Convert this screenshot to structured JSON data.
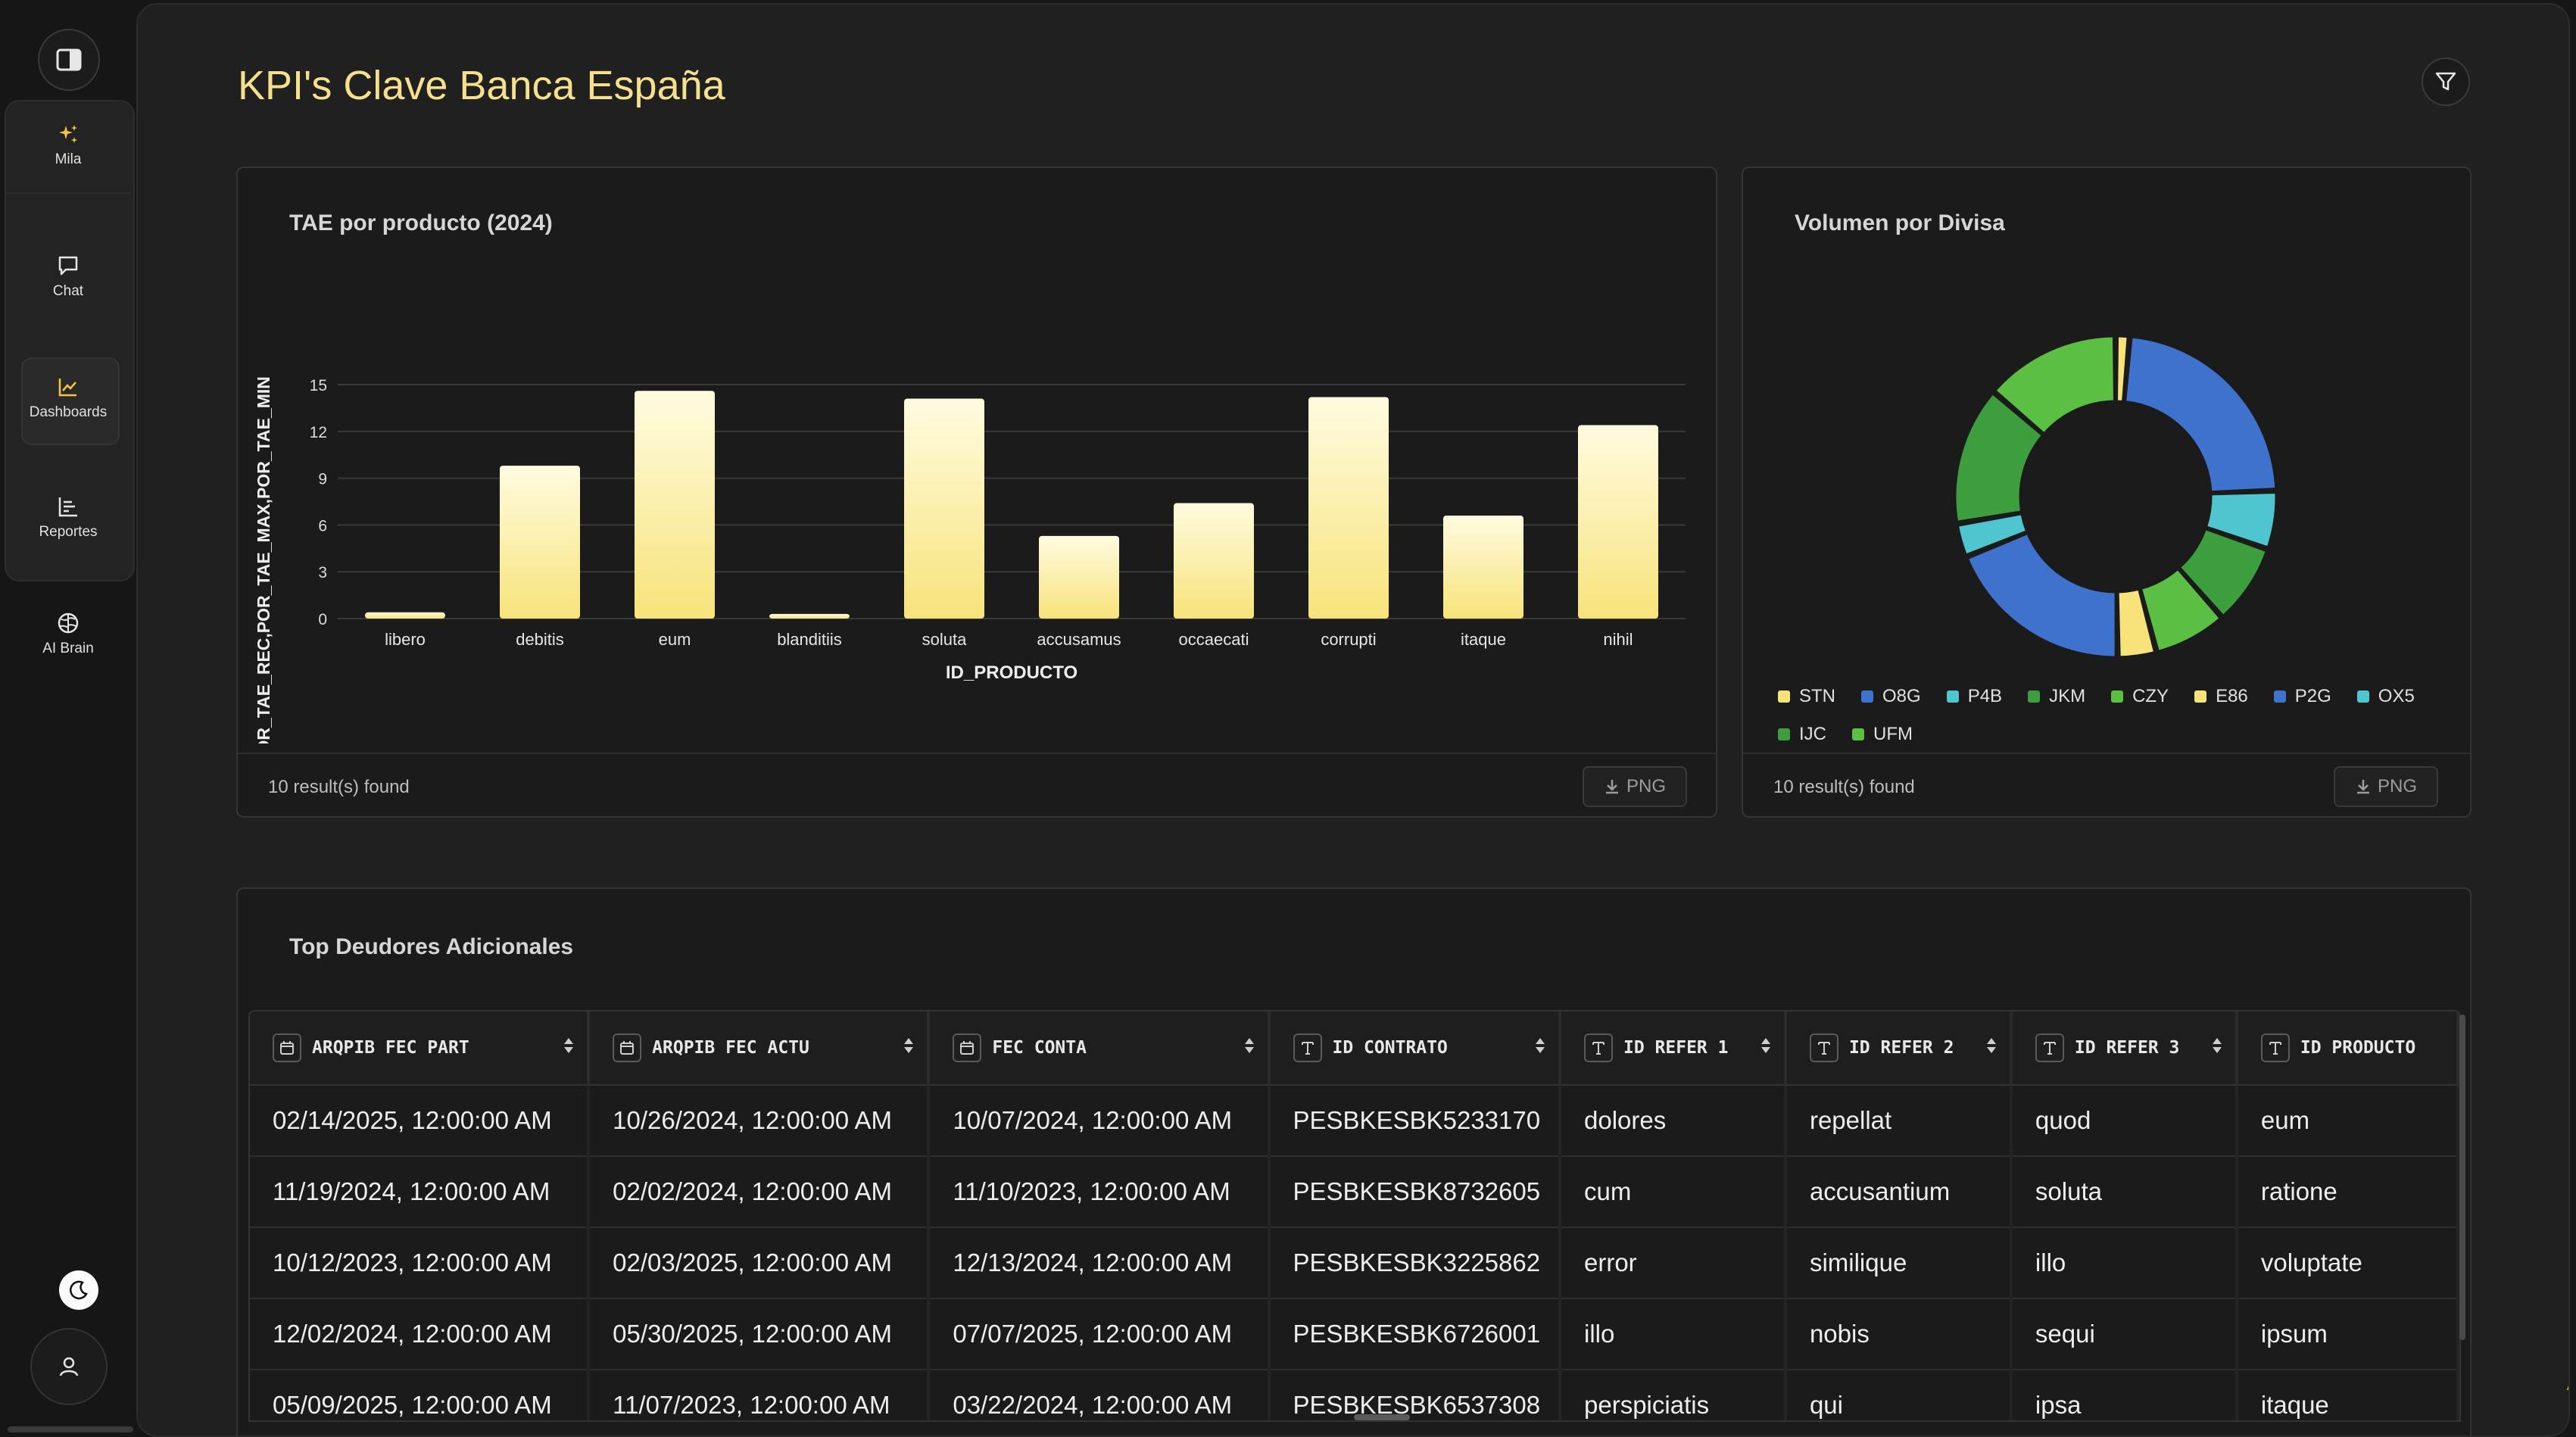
{
  "sidebar": {
    "items": [
      {
        "label": "Mila",
        "icon": "sparkles-icon"
      },
      {
        "label": "Chat",
        "icon": "chat-bubble-icon"
      },
      {
        "label": "Dashboards",
        "icon": "line-chart-icon"
      },
      {
        "label": "Reportes",
        "icon": "bar-list-icon"
      },
      {
        "label": "AI Brain",
        "icon": "brain-icon"
      }
    ],
    "active": "Dashboards",
    "accent": "#f5c542"
  },
  "page": {
    "title": "KPI's Clave Banca España"
  },
  "tae_card": {
    "title": "TAE por producto (2024)",
    "results": "10 result(s) found",
    "png_label": "PNG"
  },
  "volume_card": {
    "title": "Volumen por Divisa",
    "results": "10 result(s) found",
    "png_label": "PNG"
  },
  "table_card": {
    "title": "Top Deudores Adicionales"
  },
  "chart_data": [
    {
      "type": "bar",
      "title": "TAE por producto (2024)",
      "xlabel": "ID_PRODUCTO",
      "ylabel": "POR_TAE_REC,POR_TAE_MAX,POR_TAE_MIN",
      "categories": [
        "libero",
        "debitis",
        "eum",
        "blanditiis",
        "soluta",
        "accusamus",
        "occaecati",
        "corrupti",
        "itaque",
        "nihil"
      ],
      "values": [
        0.4,
        9.8,
        14.6,
        0.3,
        14.1,
        5.3,
        7.4,
        14.2,
        6.6,
        12.4
      ],
      "yticks": [
        0,
        3,
        6,
        9,
        12,
        15
      ],
      "ylim": [
        0,
        15
      ],
      "grid": true,
      "color": "#f7e37a"
    },
    {
      "type": "pie",
      "title": "Volumen por Divisa",
      "donut": true,
      "legend_position": "bottom",
      "slices": [
        {
          "label": "STN",
          "value": 1.4,
          "color": "#f7e37a"
        },
        {
          "label": "O8G",
          "value": 23.0,
          "color": "#3f72cc"
        },
        {
          "label": "P4B",
          "value": 5.9,
          "color": "#4fc6cf"
        },
        {
          "label": "JKM",
          "value": 8.2,
          "color": "#3c9e3c"
        },
        {
          "label": "CZY",
          "value": 7.4,
          "color": "#5bbf43"
        },
        {
          "label": "E86",
          "value": 3.9,
          "color": "#f7e37a"
        },
        {
          "label": "P2G",
          "value": 19.1,
          "color": "#3f72cc"
        },
        {
          "label": "OX5",
          "value": 3.4,
          "color": "#4fc6cf"
        },
        {
          "label": "IJC",
          "value": 14.0,
          "color": "#3c9e3c"
        },
        {
          "label": "UFM",
          "value": 13.7,
          "color": "#5bbf43"
        }
      ]
    }
  ],
  "table": {
    "columns": [
      {
        "label": "ARQPIB FEC PART",
        "type": "calendar-icon"
      },
      {
        "label": "ARQPIB FEC ACTU",
        "type": "calendar-icon"
      },
      {
        "label": "FEC CONTA",
        "type": "calendar-icon"
      },
      {
        "label": "ID CONTRATO",
        "type": "text-type-icon"
      },
      {
        "label": "ID REFER 1",
        "type": "text-type-icon"
      },
      {
        "label": "ID REFER 2",
        "type": "text-type-icon"
      },
      {
        "label": "ID REFER 3",
        "type": "text-type-icon"
      },
      {
        "label": "ID PRODUCTO",
        "type": "text-type-icon"
      }
    ],
    "rows": [
      [
        "02/14/2025, 12:00:00 AM",
        "10/26/2024, 12:00:00 AM",
        "10/07/2024, 12:00:00 AM",
        "PESBKESBK5233170",
        "dolores",
        "repellat",
        "quod",
        "eum"
      ],
      [
        "11/19/2024, 12:00:00 AM",
        "02/02/2024, 12:00:00 AM",
        "11/10/2023, 12:00:00 AM",
        "PESBKESBK8732605",
        "cum",
        "accusantium",
        "soluta",
        "ratione"
      ],
      [
        "10/12/2023, 12:00:00 AM",
        "02/03/2025, 12:00:00 AM",
        "12/13/2024, 12:00:00 AM",
        "PESBKESBK3225862",
        "error",
        "similique",
        "illo",
        "voluptate"
      ],
      [
        "12/02/2024, 12:00:00 AM",
        "05/30/2025, 12:00:00 AM",
        "07/07/2025, 12:00:00 AM",
        "PESBKESBK6726001",
        "illo",
        "nobis",
        "sequi",
        "ipsum"
      ],
      [
        "05/09/2025, 12:00:00 AM",
        "11/07/2023, 12:00:00 AM",
        "03/22/2024, 12:00:00 AM",
        "PESBKESBK6537308",
        "perspiciatis",
        "qui",
        "ipsa",
        "itaque"
      ]
    ]
  }
}
